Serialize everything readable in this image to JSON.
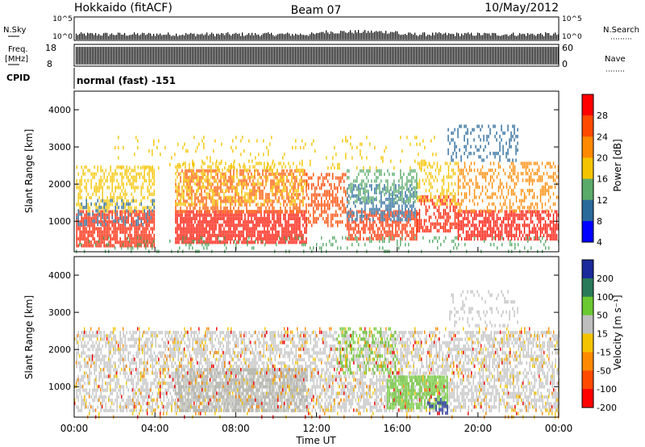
{
  "header": {
    "station": "Hokkaido (fitACF)",
    "beam": "Beam 07",
    "date": "10/May/2012"
  },
  "top_panels": {
    "nsky_label": "N.Sky",
    "nsearch_label": "N.Search",
    "nsky_ticks": [
      "10^5",
      "10^0"
    ],
    "nsearch_ticks": [
      "10^5",
      "10^0"
    ],
    "freq_label": "Freq.",
    "freq_unit": "[MHz]",
    "freq_ticks": [
      "18",
      "8"
    ],
    "nave_label": "Nave",
    "nave_ticks": [
      "60",
      "0"
    ],
    "cpid_label": "CPID",
    "cpid_text": "normal (fast) -151"
  },
  "chart_data": [
    {
      "type": "heatmap",
      "name": "power",
      "ylabel": "Slant Range [km]",
      "yticks": [
        1000,
        2000,
        3000,
        4000
      ],
      "ylim": [
        180,
        4500
      ],
      "xlim": [
        0,
        24
      ],
      "colorbar_label": "Power [dB]",
      "colorbar_ticks": [
        "28",
        "24",
        "20",
        "16",
        "12",
        "8",
        "4"
      ],
      "colorbar_colors": [
        "#ff0000",
        "#ff4a00",
        "#ff8a00",
        "#f5c400",
        "#5aab6a",
        "#2a6a9a",
        "#0000ff"
      ],
      "regions": [
        {
          "t0": 0.1,
          "t1": 4.0,
          "r0": 350,
          "r1": 1300,
          "color": "#ff2000",
          "density": 0.8
        },
        {
          "t0": 0.1,
          "t1": 4.0,
          "r0": 1300,
          "r1": 2500,
          "color": "#f5c400",
          "density": 0.45
        },
        {
          "t0": 0.1,
          "t1": 4.0,
          "r0": 900,
          "r1": 1600,
          "color": "#2a6a9a",
          "density": 0.25
        },
        {
          "t0": 5.0,
          "t1": 11.5,
          "r0": 400,
          "r1": 1300,
          "color": "#ff1000",
          "density": 0.85
        },
        {
          "t0": 5.0,
          "t1": 11.5,
          "r0": 1300,
          "r1": 2400,
          "color": "#ff5a00",
          "density": 0.55
        },
        {
          "t0": 5.0,
          "t1": 11.5,
          "r0": 1500,
          "r1": 2600,
          "color": "#f5c400",
          "density": 0.3
        },
        {
          "t0": 11.5,
          "t1": 13.5,
          "r0": 900,
          "r1": 2300,
          "color": "#ff4a00",
          "density": 0.5
        },
        {
          "t0": 13.5,
          "t1": 17.0,
          "r0": 500,
          "r1": 1300,
          "color": "#ff3000",
          "density": 0.6
        },
        {
          "t0": 13.5,
          "t1": 17.0,
          "r0": 1000,
          "r1": 2000,
          "color": "#2a6a9a",
          "density": 0.45
        },
        {
          "t0": 13.5,
          "t1": 17.0,
          "r0": 1500,
          "r1": 2400,
          "color": "#5aab6a",
          "density": 0.35
        },
        {
          "t0": 17.0,
          "t1": 19.0,
          "r0": 700,
          "r1": 1700,
          "color": "#ff2000",
          "density": 0.5
        },
        {
          "t0": 17.0,
          "t1": 19.0,
          "r0": 1500,
          "r1": 2600,
          "color": "#f5c400",
          "density": 0.35
        },
        {
          "t0": 19.0,
          "t1": 24.0,
          "r0": 500,
          "r1": 1300,
          "color": "#ff1000",
          "density": 0.7
        },
        {
          "t0": 19.0,
          "t1": 24.0,
          "r0": 1300,
          "r1": 2600,
          "color": "#ff8a00",
          "density": 0.35
        },
        {
          "t0": 18.5,
          "t1": 22.0,
          "r0": 2600,
          "r1": 3600,
          "color": "#2a6a9a",
          "density": 0.25
        },
        {
          "t0": 0.0,
          "t1": 24.0,
          "r0": 200,
          "r1": 600,
          "color": "#5aab6a",
          "density": 0.15
        },
        {
          "t0": 2.0,
          "t1": 18.0,
          "r0": 2400,
          "r1": 3300,
          "color": "#f5c400",
          "density": 0.08
        }
      ]
    },
    {
      "type": "heatmap",
      "name": "velocity",
      "ylabel": "Slant Range [km]",
      "yticks": [
        1000,
        2000,
        3000,
        4000
      ],
      "ylim": [
        180,
        4500
      ],
      "xlim": [
        0,
        24
      ],
      "colorbar_label": "Velocity [m s⁻¹]",
      "colorbar_ticks": [
        "200",
        "100",
        "50",
        "15",
        "-15",
        "-50",
        "-100",
        "-200"
      ],
      "colorbar_colors": [
        "#1a2a9a",
        "#2a7a5a",
        "#6ac830",
        "#bebebe",
        "#f5c400",
        "#ff8a00",
        "#ff4a00",
        "#ff0000"
      ],
      "regions": [
        {
          "t0": 0.1,
          "t1": 24.0,
          "r0": 350,
          "r1": 2500,
          "color": "#c0c0c0",
          "density": 0.55
        },
        {
          "t0": 5.0,
          "t1": 11.5,
          "r0": 400,
          "r1": 1500,
          "color": "#b8b8b0",
          "density": 0.75
        },
        {
          "t0": 13.0,
          "t1": 16.0,
          "r0": 1400,
          "r1": 2600,
          "color": "#6ac830",
          "density": 0.3
        },
        {
          "t0": 15.5,
          "t1": 18.5,
          "r0": 400,
          "r1": 1300,
          "color": "#6ac830",
          "density": 0.75
        },
        {
          "t0": 17.5,
          "t1": 18.5,
          "r0": 300,
          "r1": 700,
          "color": "#1a2a9a",
          "density": 0.5
        },
        {
          "t0": 0.0,
          "t1": 24.0,
          "r0": 200,
          "r1": 2600,
          "color": "#f5c400",
          "density": 0.05
        },
        {
          "t0": 0.0,
          "t1": 24.0,
          "r0": 200,
          "r1": 2600,
          "color": "#ff8a00",
          "density": 0.03
        },
        {
          "t0": 0.0,
          "t1": 24.0,
          "r0": 200,
          "r1": 2600,
          "color": "#ff0000",
          "density": 0.02
        },
        {
          "t0": 18.5,
          "t1": 22.0,
          "r0": 2600,
          "r1": 3600,
          "color": "#c0c0c0",
          "density": 0.2
        }
      ]
    }
  ],
  "xaxis": {
    "label": "Time UT",
    "ticks": [
      "00:00",
      "04:00",
      "08:00",
      "12:00",
      "16:00",
      "20:00",
      "00:00"
    ]
  }
}
